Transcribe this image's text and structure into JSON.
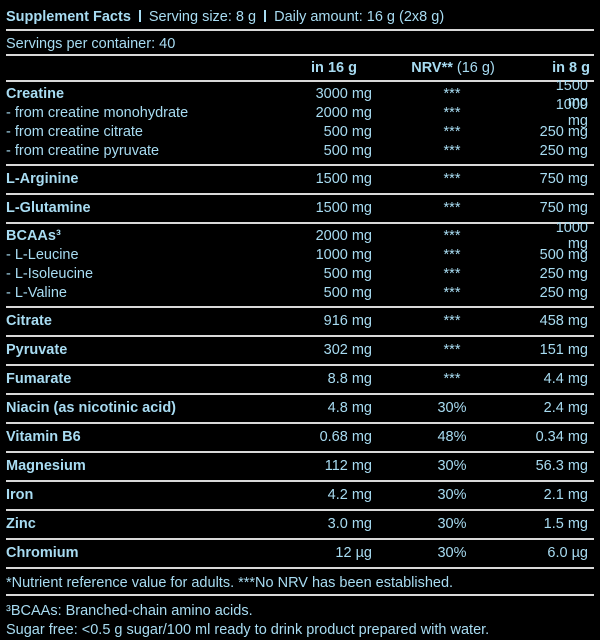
{
  "header": {
    "title": "Supplement Facts",
    "serving_size": "Serving size: 8 g",
    "daily_amount": "Daily amount: 16 g (2x8 g)",
    "servings": "Servings per container: 40"
  },
  "columns": {
    "in_16": "in 16 g",
    "nrv": "NRV**",
    "nrv_unit": "(16 g)",
    "in_8": "in 8 g"
  },
  "groups": [
    {
      "rows": [
        [
          "Creatine",
          "3000 mg",
          "***",
          "1500 mg"
        ],
        [
          "- from creatine monohydrate",
          "2000 mg",
          "***",
          "1000 mg"
        ],
        [
          "- from creatine citrate",
          "500 mg",
          "***",
          "250 mg"
        ],
        [
          "- from creatine pyruvate",
          "500 mg",
          "***",
          "250 mg"
        ]
      ]
    },
    {
      "rows": [
        [
          "L-Arginine",
          "1500 mg",
          "***",
          "750 mg"
        ]
      ]
    },
    {
      "rows": [
        [
          "L-Glutamine",
          "1500 mg",
          "***",
          "750 mg"
        ]
      ]
    },
    {
      "rows": [
        [
          "BCAAs³",
          "2000 mg",
          "***",
          "1000 mg"
        ],
        [
          "- L-Leucine",
          "1000 mg",
          "***",
          "500 mg"
        ],
        [
          "- L-Isoleucine",
          "500 mg",
          "***",
          "250 mg"
        ],
        [
          "- L-Valine",
          "500 mg",
          "***",
          "250 mg"
        ]
      ]
    },
    {
      "rows": [
        [
          "Citrate",
          "916 mg",
          "***",
          "458 mg"
        ]
      ]
    },
    {
      "rows": [
        [
          "Pyruvate",
          "302 mg",
          "***",
          "151 mg"
        ]
      ]
    },
    {
      "rows": [
        [
          "Fumarate",
          "8.8 mg",
          "***",
          "4.4 mg"
        ]
      ]
    },
    {
      "rows": [
        [
          "Niacin (as nicotinic acid)",
          "4.8 mg",
          "30%",
          "2.4 mg"
        ]
      ]
    },
    {
      "rows": [
        [
          "Vitamin B6",
          "0.68 mg",
          "48%",
          "0.34 mg"
        ]
      ]
    },
    {
      "rows": [
        [
          "Magnesium",
          "112 mg",
          "30%",
          "56.3 mg"
        ]
      ]
    },
    {
      "rows": [
        [
          "Iron",
          "4.2 mg",
          "30%",
          "2.1 mg"
        ]
      ]
    },
    {
      "rows": [
        [
          "Zinc",
          "3.0 mg",
          "30%",
          "1.5 mg"
        ]
      ]
    },
    {
      "rows": [
        [
          "Chromium",
          "12 µg",
          "30%",
          "6.0 µg"
        ]
      ]
    }
  ],
  "footnotes": {
    "nrv_note": "*Nutrient reference value for adults. ***No NRV has been established.",
    "bcaa_note": "³BCAAs: Branched-chain amino acids.",
    "sugar_note": "Sugar free: <0.5 g sugar/100 ml ready to drink product prepared with water."
  }
}
